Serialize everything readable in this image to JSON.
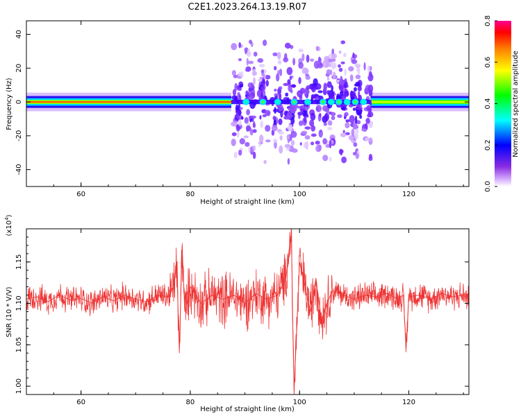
{
  "title": "C2E1.2023.264.13.19.R07",
  "chart_data": [
    {
      "type": "heatmap",
      "xlabel": "Height of straight line (km)",
      "ylabel": "Frequency (Hz)",
      "xlim": [
        50,
        131
      ],
      "ylim": [
        -50,
        48
      ],
      "xticks": [
        60,
        80,
        100,
        120
      ],
      "yticks": [
        -40,
        -20,
        0,
        20,
        40
      ],
      "xtick_labels": [
        "60",
        "80",
        "100",
        "120"
      ],
      "ytick_labels": [
        "-40",
        "-20",
        "0",
        "20",
        "40"
      ],
      "colorbar": {
        "label": "Normalized spectral amplitude",
        "range": [
          0.0,
          0.8
        ],
        "ticks": [
          "0.0",
          "0.2",
          "0.4",
          "0.6",
          "0.8"
        ],
        "colors": [
          "#ffffff",
          "#d9b3ff",
          "#8a2be2",
          "#0000ff",
          "#00ffff",
          "#00ff00",
          "#ffff00",
          "#ff8000",
          "#ff0000",
          "#ff00a0"
        ]
      },
      "regions": [
        {
          "x": [
            50,
            87.5
          ],
          "description_value": "continuous band centered near 0 Hz, peak amplitude ~0.8",
          "band_halfwidth_hz": 4
        },
        {
          "x": [
            87.5,
            113
          ],
          "description_value": "scattered amplitude spread up to about +/-38 Hz, values ~0.1-0.3",
          "band_halfwidth_hz": 38
        },
        {
          "x": [
            113,
            131
          ],
          "description_value": "continuous band centered near 0 Hz, amplitude ~0.4-0.5",
          "band_halfwidth_hz": 4
        }
      ]
    },
    {
      "type": "line",
      "xlabel": "Height of straight line (km)",
      "ylabel": "SNR (10 * V/V)",
      "y_multiplier": "(x10",
      "y_multiplier_exp": "4",
      "y_multiplier_close": ")",
      "xlim": [
        50,
        131
      ],
      "ylim": [
        0.99,
        1.19
      ],
      "xticks": [
        60,
        80,
        100,
        120
      ],
      "yticks": [
        1.0,
        1.05,
        1.1,
        1.15
      ],
      "xtick_labels": [
        "60",
        "80",
        "100",
        "120"
      ],
      "ytick_labels": [
        "1.00",
        "1.05",
        "1.10",
        "1.15"
      ],
      "series": [
        {
          "color": "#ee3333",
          "x": [
            50,
            52,
            54,
            56,
            58,
            60,
            62,
            64,
            66,
            68,
            70,
            72,
            74,
            76,
            77,
            77.5,
            78,
            78.5,
            79,
            80,
            82,
            84,
            86,
            88,
            90,
            92,
            94,
            96,
            97.5,
            98,
            98.5,
            98.8,
            99,
            99.5,
            100,
            101,
            102,
            103,
            104,
            105,
            106,
            108,
            110,
            112,
            114,
            116,
            118,
            119,
            119.5,
            120,
            122,
            124,
            126,
            128,
            130,
            131
          ],
          "values": [
            1.105,
            1.108,
            1.102,
            1.11,
            1.104,
            1.106,
            1.1,
            1.108,
            1.103,
            1.11,
            1.105,
            1.102,
            1.11,
            1.108,
            1.12,
            1.15,
            1.04,
            1.17,
            1.09,
            1.12,
            1.1,
            1.11,
            1.105,
            1.11,
            1.1,
            1.112,
            1.105,
            1.11,
            1.13,
            1.16,
            1.185,
            1.06,
            0.995,
            1.07,
            1.15,
            1.12,
            1.09,
            1.13,
            1.08,
            1.1,
            1.115,
            1.11,
            1.105,
            1.11,
            1.108,
            1.112,
            1.105,
            1.11,
            1.045,
            1.108,
            1.11,
            1.105,
            1.112,
            1.108,
            1.11,
            1.105
          ]
        }
      ]
    }
  ]
}
